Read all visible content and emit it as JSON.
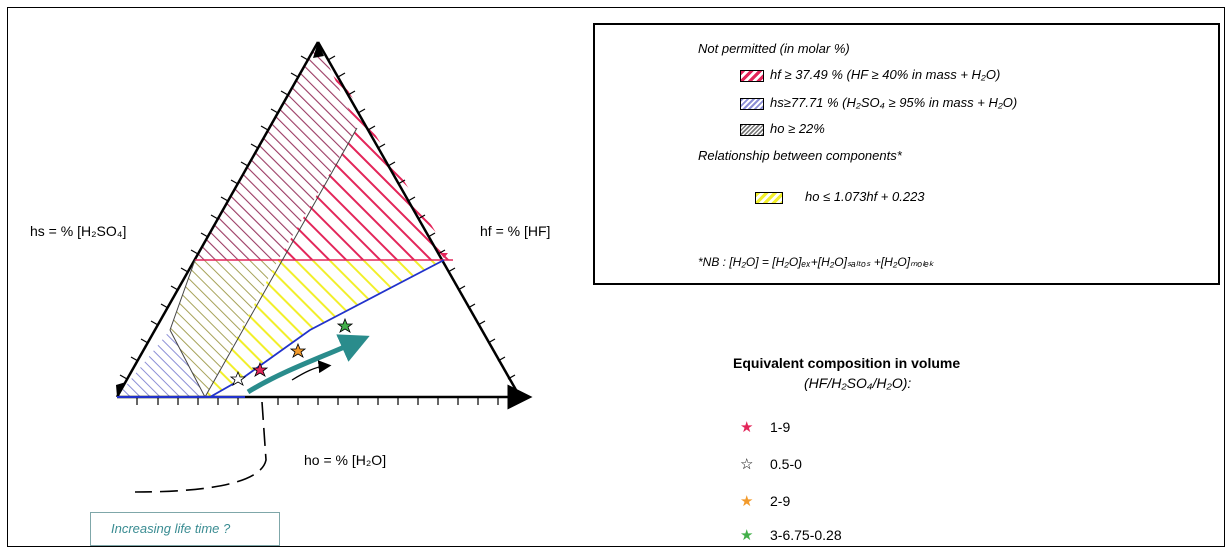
{
  "axes": {
    "hs": "hs = % [H₂SO₄]",
    "hf": "hf = % [HF]",
    "ho": "ho = % [H₂O]"
  },
  "legend": {
    "title_not_permitted": "Not permitted (in molar %)",
    "hf_rule": "hf ≥ 37.49 % (HF ≥ 40% in mass + H₂O)",
    "hs_rule": "hs≥77.71 % (H₂SO₄ ≥ 95% in mass + H₂O)",
    "ho_rule": "ho ≥ 22%",
    "title_relationship": "Relationship between components*",
    "relation": "ho ≤ 1.073hf + 0.223",
    "note": "*NB : [H₂O] = [H₂O]ₑₓ+[H₂O]ₛₐₗₜₒₛ +[H₂O]ₘₒₗₑₖ"
  },
  "equivalent": {
    "title": "Equivalent composition in volume",
    "subtitle": "(HF/H₂SO₄/H₂O):",
    "items": [
      {
        "label": "1-9",
        "color": "#e3265a"
      },
      {
        "label": "0.5-0",
        "color": "#ffffff"
      },
      {
        "label": "2-9",
        "color": "#f29a2b"
      },
      {
        "label": "3-6.75-0.28",
        "color": "#43b04a"
      }
    ]
  },
  "annotation": {
    "text": "Increasing life time ?"
  },
  "colors": {
    "red_hatch": "#e3265a",
    "blue_hatch": "#8c8fd6",
    "gray_hatch": "#777777",
    "yellow_hatch": "#f2ef2b",
    "teal_arrow": "#2a8c8c",
    "blue_line": "#2233cc"
  }
}
